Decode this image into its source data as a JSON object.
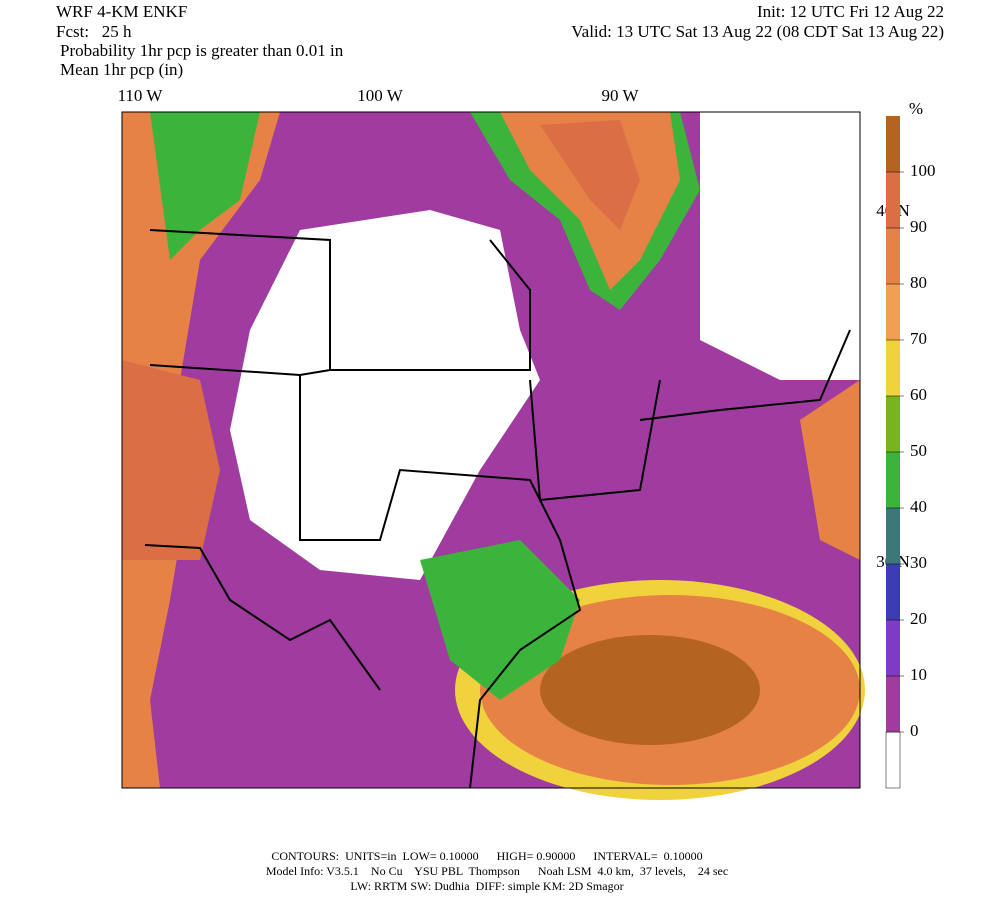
{
  "header": {
    "model": "WRF 4-KM ENKF",
    "forecast": "Fcst:   25 h",
    "init": "Init: 12 UTC Fri 12 Aug 22",
    "valid": "Valid: 13 UTC Sat 13 Aug 22 (08 CDT Sat 13 Aug 22)",
    "field1": "Probability 1hr pcp is greater than 0.01 in",
    "field2": "Mean 1hr pcp (in)"
  },
  "map": {
    "longitude_labels": [
      "110 W",
      "100 W",
      "90 W"
    ],
    "latitude_labels": [
      "40 N",
      "30 N"
    ]
  },
  "colorbar": {
    "unit": "%",
    "ticks": [
      0,
      10,
      20,
      30,
      40,
      50,
      60,
      70,
      80,
      90,
      100
    ],
    "colors": [
      "#ffffff",
      "#a03ca0",
      "#7d3cc3",
      "#3c3cb4",
      "#3c7878",
      "#3cb43c",
      "#78b41e",
      "#f0d23c",
      "#f0a050",
      "#e68246",
      "#dc6e46",
      "#b4641e"
    ]
  },
  "footer": {
    "line1": "CONTOURS:  UNITS=in  LOW= 0.10000      HIGH= 0.90000      INTERVAL=  0.10000",
    "line2": "Model Info: V3.5.1    No Cu    YSU PBL  Thompson      Noah LSM  4.0 km,  37 levels,    24 sec",
    "line3": "LW: RRTM SW: Dudhia  DIFF: simple KM: 2D Smagor"
  }
}
